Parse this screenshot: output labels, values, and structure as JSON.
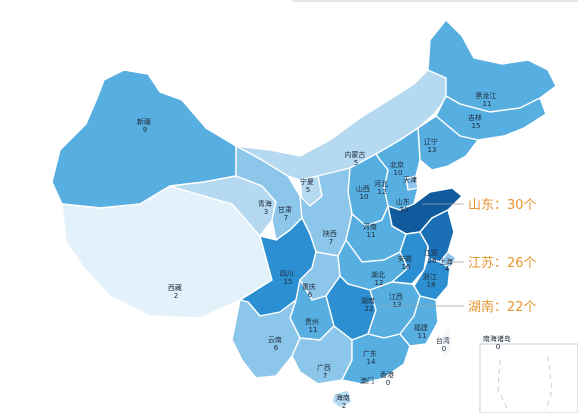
{
  "colors": {
    "level_1": "#e3f1fa",
    "level_2": "#b4d9f0",
    "level_3": "#8cc6ea",
    "level_4": "#57aee0",
    "level_5": "#2b8fd1",
    "level_6": "#1a6fb5",
    "level_7": "#0f5b9e",
    "callout": "#e8952f"
  },
  "provinces": [
    {
      "key": "xinjiang",
      "name": "新疆",
      "value": "9",
      "level": 4
    },
    {
      "key": "xizang",
      "name": "西藏",
      "value": "2",
      "level": 1
    },
    {
      "key": "qinghai",
      "name": "青海",
      "value": "3",
      "level": 2
    },
    {
      "key": "gansu",
      "name": "甘肃",
      "value": "7",
      "level": 3
    },
    {
      "key": "neimenggu",
      "name": "内蒙古",
      "value": "5",
      "level": 2
    },
    {
      "key": "ningxia",
      "name": "宁夏",
      "value": "5",
      "level": 2
    },
    {
      "key": "heilongjiang",
      "name": "黑龙江",
      "value": "11",
      "level": 4
    },
    {
      "key": "jilin",
      "name": "吉林",
      "value": "15",
      "level": 4
    },
    {
      "key": "liaoning",
      "name": "辽宁",
      "value": "13",
      "level": 4
    },
    {
      "key": "beijing",
      "name": "北京",
      "value": "10",
      "level": 4
    },
    {
      "key": "tianjin",
      "name": "天津",
      "value": "",
      "level": 3
    },
    {
      "key": "hebei",
      "name": "河北",
      "value": "12",
      "level": 4
    },
    {
      "key": "shanxi",
      "name": "山西",
      "value": "10",
      "level": 4
    },
    {
      "key": "shaanxi",
      "name": "陕西",
      "value": "7",
      "level": 3
    },
    {
      "key": "shandong",
      "name": "山东",
      "value": "30",
      "level": 7
    },
    {
      "key": "henan",
      "name": "河南",
      "value": "11",
      "level": 4
    },
    {
      "key": "sichuan",
      "name": "四川",
      "value": "15",
      "level": 5
    },
    {
      "key": "chongqing",
      "name": "重庆",
      "value": "6",
      "level": 3
    },
    {
      "key": "hubei",
      "name": "湖北",
      "value": "12",
      "level": 4
    },
    {
      "key": "anhui",
      "name": "安徽",
      "value": "16",
      "level": 5
    },
    {
      "key": "jiangsu",
      "name": "江苏",
      "value": "26",
      "level": 6
    },
    {
      "key": "shanghai",
      "name": "上海",
      "value": "4",
      "level": 3
    },
    {
      "key": "zhejiang",
      "name": "浙江",
      "value": "18",
      "level": 5
    },
    {
      "key": "hunan",
      "name": "湖南",
      "value": "22",
      "level": 5
    },
    {
      "key": "jiangxi",
      "name": "江西",
      "value": "13",
      "level": 4
    },
    {
      "key": "guizhou",
      "name": "贵州",
      "value": "11",
      "level": 4
    },
    {
      "key": "yunnan",
      "name": "云南",
      "value": "6",
      "level": 3
    },
    {
      "key": "guangxi",
      "name": "广西",
      "value": "7",
      "level": 3
    },
    {
      "key": "guangdong",
      "name": "广东",
      "value": "14",
      "level": 4
    },
    {
      "key": "fujian",
      "name": "福建",
      "value": "11",
      "level": 4
    },
    {
      "key": "taiwan",
      "name": "台湾",
      "value": "0",
      "level": 0
    },
    {
      "key": "hainan",
      "name": "海南",
      "value": "2",
      "level": 2
    },
    {
      "key": "hongkong",
      "name": "香港",
      "value": "0",
      "level": 0
    },
    {
      "key": "macau",
      "name": "澳门",
      "value": "",
      "level": 0
    },
    {
      "key": "nanhai",
      "name": "南海诸岛",
      "value": "0",
      "level": 0
    }
  ],
  "callouts": [
    {
      "key": "shandong",
      "text": "山东：30个"
    },
    {
      "key": "jiangsu",
      "text": "江苏：26个"
    },
    {
      "key": "hunan",
      "text": "湖南：22个"
    }
  ]
}
